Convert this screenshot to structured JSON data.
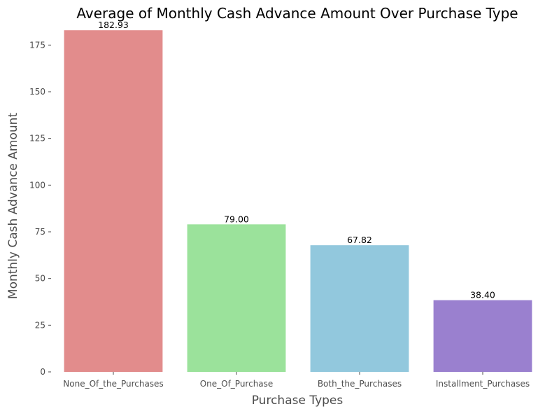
{
  "chart_data": {
    "type": "bar",
    "title": "Average of Monthly Cash Advance Amount Over Purchase Type",
    "xlabel": "Purchase Types",
    "ylabel": "Monthly Cash Advance Amount",
    "categories": [
      "None_Of_the_Purchases",
      "One_Of_Purchase",
      "Both_the_Purchases",
      "Installment_Purchases"
    ],
    "values": [
      182.93,
      79.0,
      67.82,
      38.4
    ],
    "value_labels": [
      "182.93",
      "79.00",
      "67.82",
      "38.40"
    ],
    "colors": [
      "#e28c8c",
      "#9be29b",
      "#92c8dd",
      "#9a80cf"
    ],
    "ylim": [
      0,
      183
    ],
    "yticks": [
      0,
      25,
      50,
      75,
      100,
      125,
      150,
      175
    ],
    "grid": false,
    "legend": "none"
  }
}
